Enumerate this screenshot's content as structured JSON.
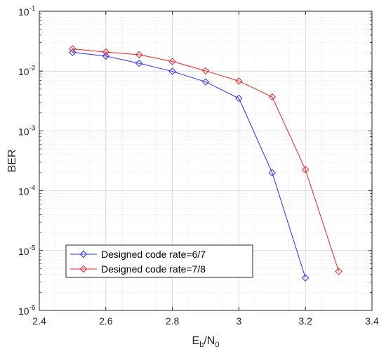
{
  "chart_data": {
    "type": "line",
    "xlabel": {
      "main": "E",
      "sub1": "b",
      "slash": "/N",
      "sub2": "0"
    },
    "ylabel": "BER",
    "xlim": [
      2.4,
      3.4
    ],
    "ylim": [
      1e-06,
      0.1
    ],
    "yscale": "log",
    "grid": true,
    "minor_grid": true,
    "legend_position": "lower-left",
    "x_ticks": [
      {
        "value": 2.4,
        "label": "2.4"
      },
      {
        "value": 2.6,
        "label": "2.6"
      },
      {
        "value": 2.8,
        "label": "2.8"
      },
      {
        "value": 3.0,
        "label": "3"
      },
      {
        "value": 3.2,
        "label": "3.2"
      },
      {
        "value": 3.4,
        "label": "3.4"
      }
    ],
    "y_ticks": [
      {
        "value": 1e-06,
        "base": "10",
        "exp": "-6"
      },
      {
        "value": 1e-05,
        "base": "10",
        "exp": "-5"
      },
      {
        "value": 0.0001,
        "base": "10",
        "exp": "-4"
      },
      {
        "value": 0.001,
        "base": "10",
        "exp": "-3"
      },
      {
        "value": 0.01,
        "base": "10",
        "exp": "-2"
      },
      {
        "value": 0.1,
        "base": "10",
        "exp": "-1"
      }
    ],
    "series": [
      {
        "name": "Designed code rate=6/7",
        "color": "#2b2bff",
        "marker": "diamond",
        "x": [
          2.5,
          2.6,
          2.7,
          2.8,
          2.9,
          3.0,
          3.1,
          3.2
        ],
        "y": [
          0.0205,
          0.0178,
          0.0135,
          0.0099,
          0.0066,
          0.0035,
          0.0002,
          3.5e-06
        ]
      },
      {
        "name": "Designed code rate=7/8",
        "color": "#ee2222",
        "marker": "diamond",
        "x": [
          2.5,
          2.6,
          2.7,
          2.8,
          2.9,
          3.0,
          3.1,
          3.2,
          3.3
        ],
        "y": [
          0.0235,
          0.0208,
          0.0188,
          0.0145,
          0.0101,
          0.0068,
          0.0037,
          0.000225,
          4.5e-06
        ]
      }
    ]
  }
}
